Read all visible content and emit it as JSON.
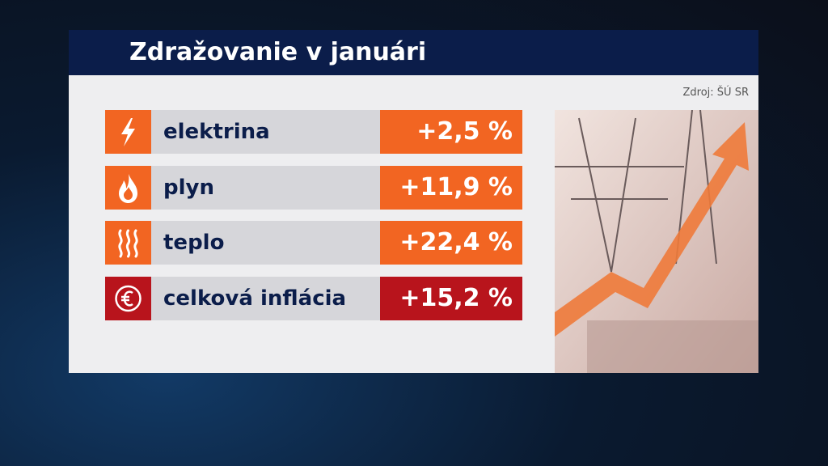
{
  "header": {
    "title": "Zdražovanie v januári",
    "source": "Zdroj: ŠÚ SR"
  },
  "table": {
    "rows": [
      {
        "label": "elektrina",
        "value": "+2,5 %"
      },
      {
        "label": "plyn",
        "value": "+11,9 %"
      },
      {
        "label": "teplo",
        "value": "+22,4 %"
      },
      {
        "label": "celková inflácia",
        "value": "+15,2 %"
      }
    ]
  }
}
